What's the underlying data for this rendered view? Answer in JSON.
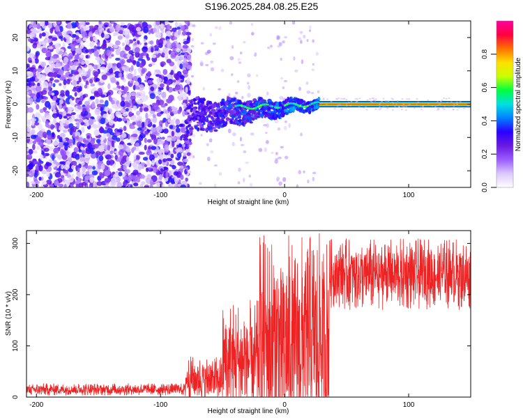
{
  "figure": {
    "title": "S196.2025.284.08.25.E25"
  },
  "chart_data": [
    {
      "type": "heatmap",
      "title": "",
      "xlabel": "Height of straight line (km)",
      "ylabel": "Frequency (Hz)",
      "xlim": [
        -208,
        150
      ],
      "ylim": [
        -25,
        25
      ],
      "xticks": [
        -200,
        -100,
        0,
        100
      ],
      "yticks": [
        -20,
        -10,
        0,
        10,
        20
      ],
      "colorbar": {
        "label": "Normalized spectral amplitude",
        "range": [
          0.0,
          1.0
        ],
        "ticks": [
          0.0,
          0.2,
          0.4,
          0.6,
          0.8
        ],
        "colormap": [
          "#ffffff",
          "#dcc8ff",
          "#9a5cff",
          "#6a1ae0",
          "#2a00ff",
          "#0080ff",
          "#00e0e0",
          "#00ff40",
          "#c8ff00",
          "#ffe000",
          "#ff7000",
          "#ff0040",
          "#ff00a0"
        ]
      },
      "regions": [
        {
          "name": "noise",
          "x": [
            -208,
            -80
          ],
          "freq_spread_hz": 25,
          "amplitude": 0.15
        },
        {
          "name": "transition",
          "x": [
            -80,
            28
          ],
          "center_hz": [
            -4,
            0
          ],
          "amplitude": 0.3
        },
        {
          "name": "tone",
          "x": [
            28,
            150
          ],
          "center_hz": 0,
          "amplitude": 1.0
        }
      ]
    },
    {
      "type": "line",
      "title": "",
      "xlabel": "Height of straight line (km)",
      "ylabel": "SNR (10 * v/v)",
      "xlim": [
        -208,
        150
      ],
      "ylim": [
        0,
        325
      ],
      "xticks": [
        -200,
        -100,
        0,
        100
      ],
      "yticks": [
        0,
        100,
        200,
        300
      ],
      "series": [
        {
          "name": "SNR",
          "color": "#ee2222",
          "segments": [
            {
              "x": [
                -208,
                -80
              ],
              "mean": 15,
              "jitter": 12
            },
            {
              "x": [
                -80,
                -50
              ],
              "mean": 35,
              "jitter": 45
            },
            {
              "x": [
                -50,
                -20
              ],
              "mean": 70,
              "jitter": 120
            },
            {
              "x": [
                -20,
                36
              ],
              "mean": 110,
              "jitter": 210
            },
            {
              "x": [
                36,
                150
              ],
              "mean": 240,
              "jitter": 70
            }
          ]
        }
      ]
    }
  ]
}
